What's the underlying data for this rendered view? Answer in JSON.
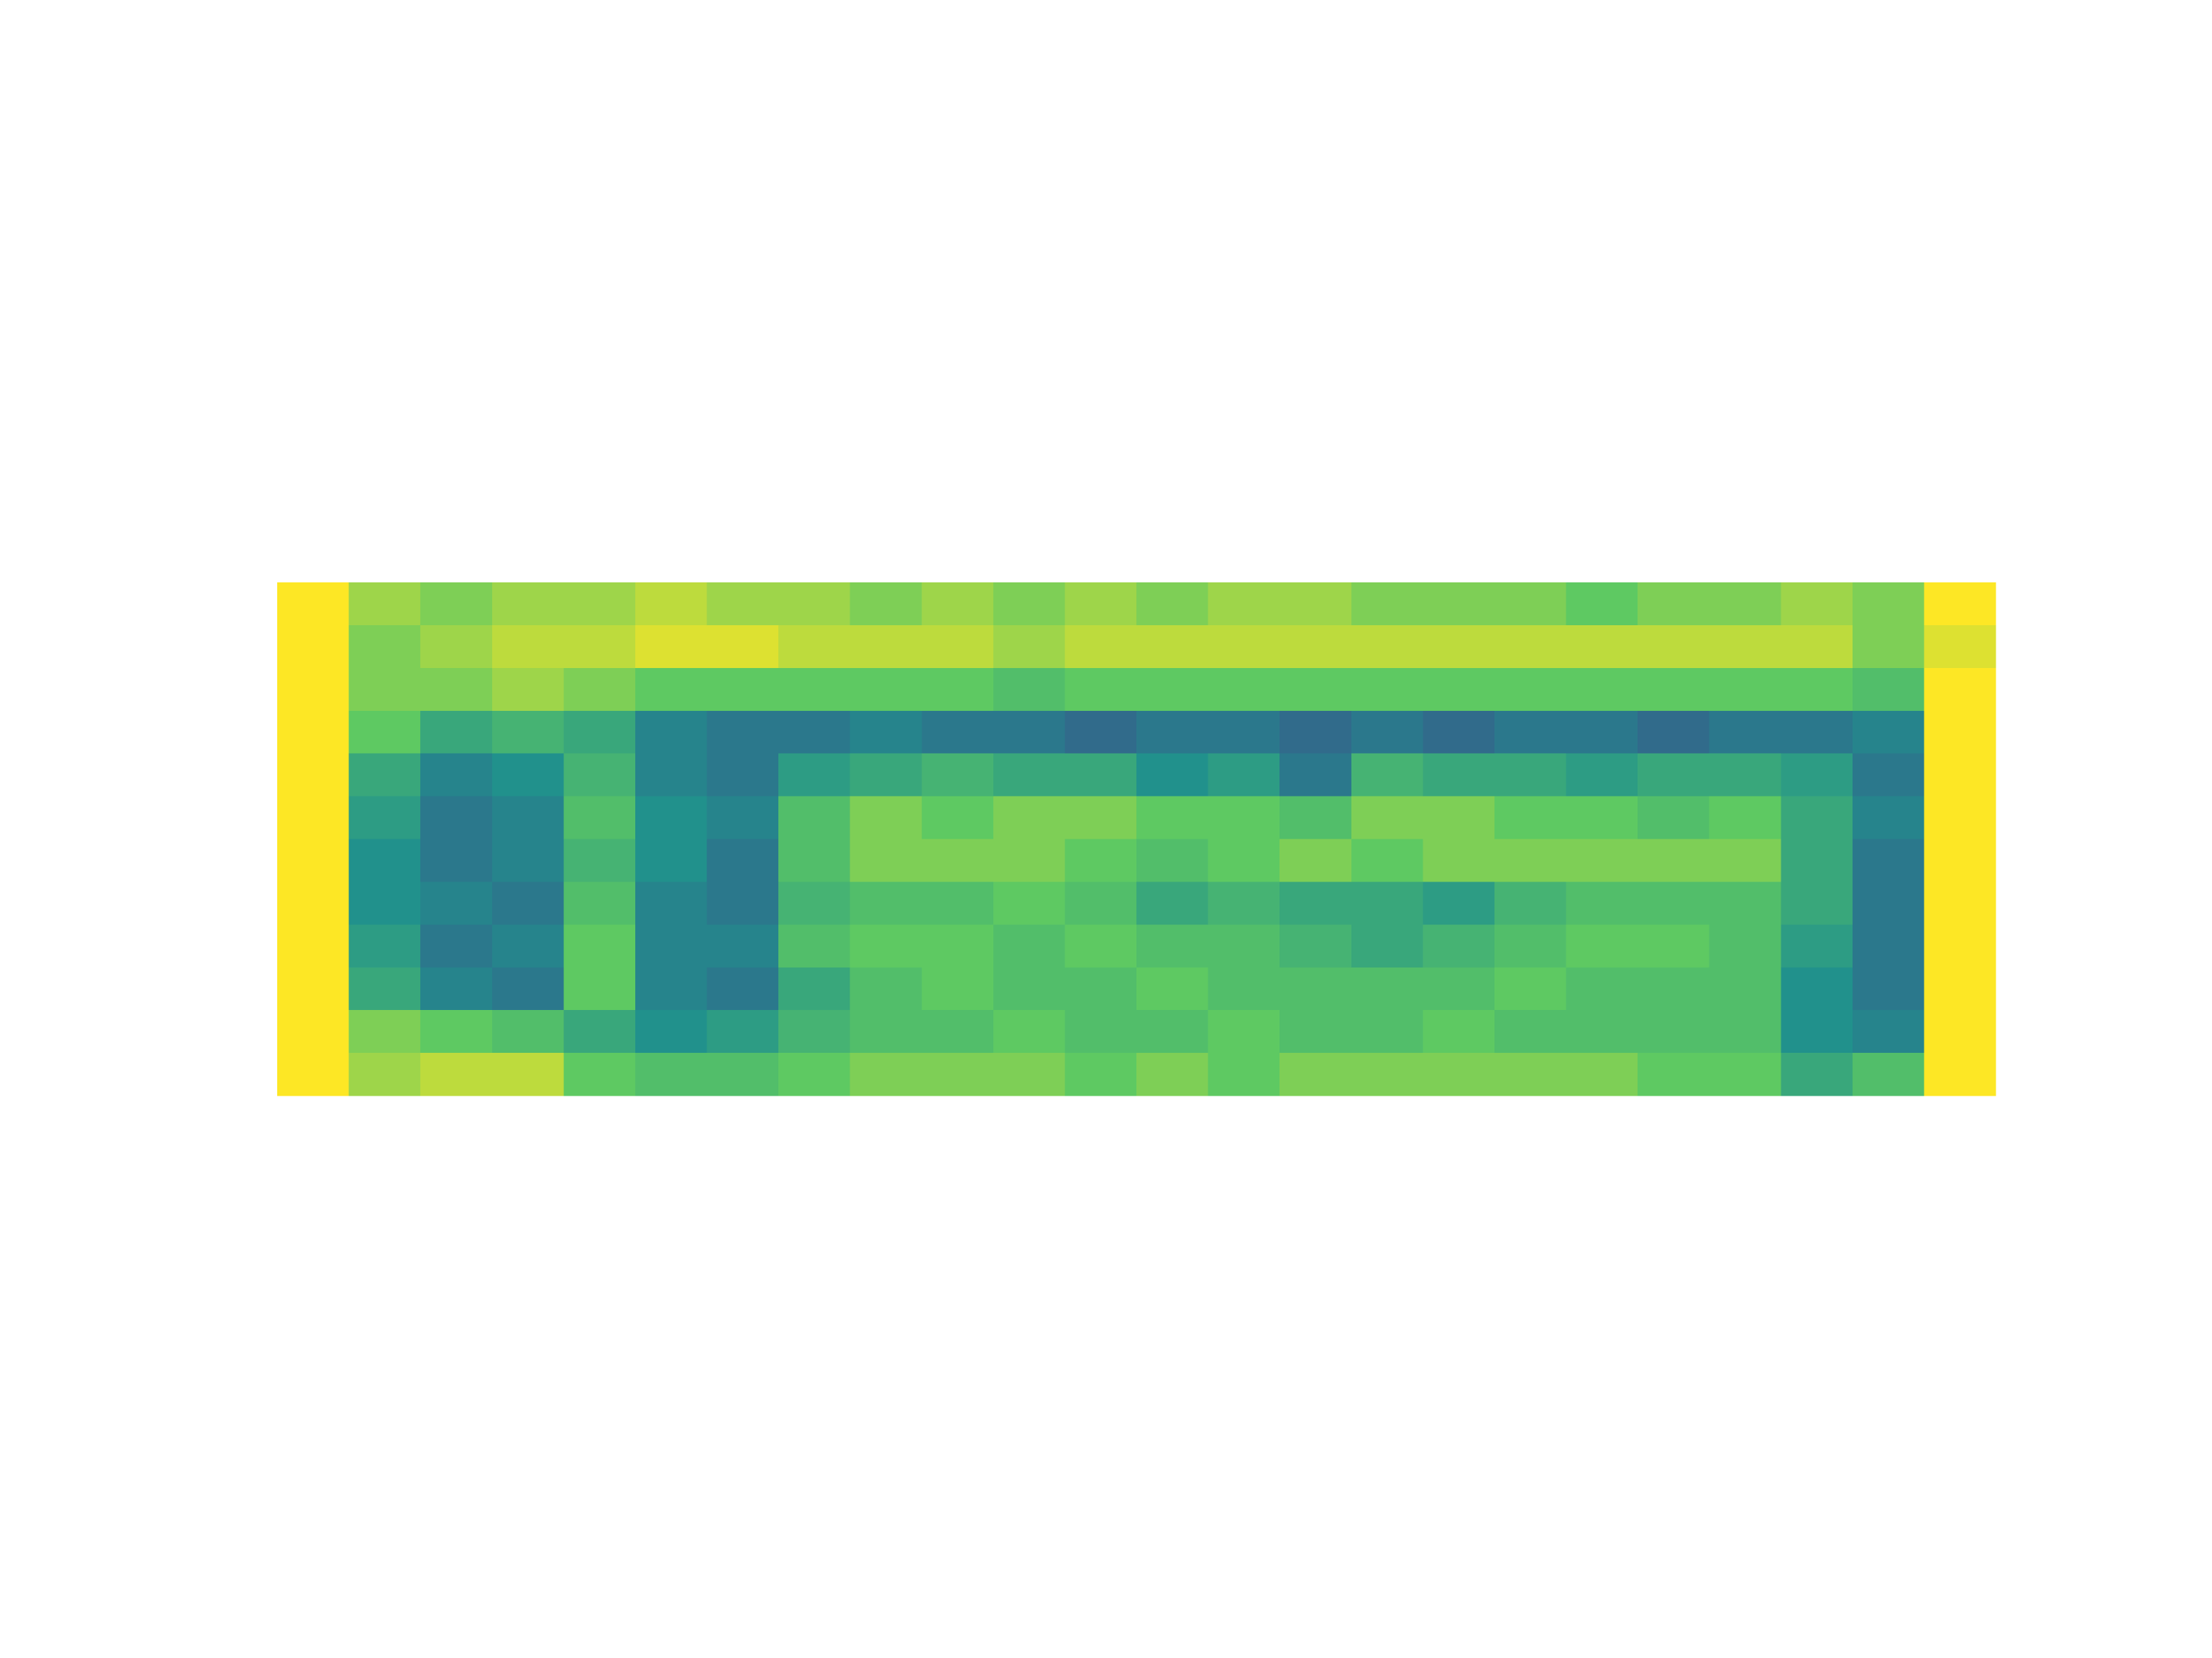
{
  "chart_data": {
    "type": "heatmap",
    "colormap": "viridis",
    "zlim": [
      0,
      1
    ],
    "z": [
      [
        1,
        0.85,
        0.8,
        0.85,
        0.85,
        0.9,
        0.85,
        0.85,
        0.8,
        0.85,
        0.8,
        0.85,
        0.8,
        0.85,
        0.85,
        0.8,
        0.8,
        0.8,
        0.75,
        0.8,
        0.8,
        0.85,
        0.8,
        1
      ],
      [
        1,
        0.8,
        0.85,
        0.9,
        0.9,
        0.95,
        0.95,
        0.9,
        0.9,
        0.9,
        0.85,
        0.9,
        0.9,
        0.9,
        0.9,
        0.9,
        0.9,
        0.9,
        0.9,
        0.9,
        0.9,
        0.9,
        0.8,
        0.95
      ],
      [
        1,
        0.8,
        0.8,
        0.85,
        0.8,
        0.75,
        0.75,
        0.75,
        0.75,
        0.75,
        0.7,
        0.75,
        0.75,
        0.75,
        0.75,
        0.75,
        0.75,
        0.75,
        0.75,
        0.75,
        0.75,
        0.75,
        0.7,
        1
      ],
      [
        1,
        0.75,
        0.6,
        0.65,
        0.6,
        0.45,
        0.4,
        0.4,
        0.45,
        0.4,
        0.4,
        0.35,
        0.4,
        0.4,
        0.35,
        0.4,
        0.35,
        0.4,
        0.4,
        0.35,
        0.4,
        0.4,
        0.45,
        1
      ],
      [
        1,
        0.6,
        0.45,
        0.5,
        0.65,
        0.45,
        0.4,
        0.55,
        0.6,
        0.65,
        0.6,
        0.6,
        0.5,
        0.55,
        0.4,
        0.65,
        0.6,
        0.6,
        0.55,
        0.6,
        0.6,
        0.55,
        0.4,
        1
      ],
      [
        1,
        0.55,
        0.4,
        0.45,
        0.7,
        0.5,
        0.45,
        0.7,
        0.8,
        0.75,
        0.8,
        0.8,
        0.75,
        0.75,
        0.7,
        0.8,
        0.8,
        0.75,
        0.75,
        0.7,
        0.75,
        0.6,
        0.45,
        1
      ],
      [
        1,
        0.5,
        0.4,
        0.45,
        0.65,
        0.5,
        0.4,
        0.7,
        0.8,
        0.8,
        0.8,
        0.75,
        0.7,
        0.75,
        0.8,
        0.75,
        0.8,
        0.8,
        0.8,
        0.8,
        0.8,
        0.6,
        0.4,
        1
      ],
      [
        1,
        0.5,
        0.45,
        0.4,
        0.7,
        0.45,
        0.4,
        0.65,
        0.7,
        0.7,
        0.75,
        0.7,
        0.6,
        0.65,
        0.6,
        0.6,
        0.55,
        0.65,
        0.7,
        0.7,
        0.7,
        0.6,
        0.4,
        1
      ],
      [
        1,
        0.55,
        0.4,
        0.45,
        0.75,
        0.45,
        0.45,
        0.7,
        0.75,
        0.75,
        0.7,
        0.75,
        0.7,
        0.7,
        0.65,
        0.6,
        0.65,
        0.7,
        0.75,
        0.75,
        0.7,
        0.55,
        0.4,
        1
      ],
      [
        1,
        0.6,
        0.45,
        0.4,
        0.75,
        0.45,
        0.4,
        0.6,
        0.7,
        0.75,
        0.7,
        0.7,
        0.75,
        0.7,
        0.7,
        0.7,
        0.7,
        0.75,
        0.7,
        0.7,
        0.7,
        0.5,
        0.4,
        1
      ],
      [
        1,
        0.8,
        0.75,
        0.7,
        0.6,
        0.5,
        0.55,
        0.65,
        0.7,
        0.7,
        0.75,
        0.7,
        0.7,
        0.75,
        0.7,
        0.7,
        0.75,
        0.7,
        0.7,
        0.7,
        0.7,
        0.5,
        0.45,
        1
      ],
      [
        1,
        0.85,
        0.9,
        0.9,
        0.75,
        0.7,
        0.7,
        0.75,
        0.8,
        0.8,
        0.8,
        0.75,
        0.8,
        0.75,
        0.8,
        0.8,
        0.8,
        0.8,
        0.8,
        0.75,
        0.75,
        0.6,
        0.7,
        1
      ]
    ]
  }
}
